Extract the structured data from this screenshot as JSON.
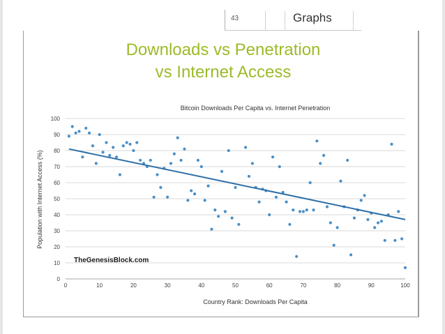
{
  "header": {
    "slide_number": "43",
    "section_title": "Graphs"
  },
  "slide": {
    "title_line1": "Downloads vs Penetration",
    "title_line2": "vs Internet Access"
  },
  "colors": {
    "title_green": "#9cbb29",
    "point_blue": "#4a8fc6",
    "trend_blue": "#2e6fa8"
  },
  "chart_data": {
    "type": "scatter",
    "title": "Bitcoin Downloads Per Capita vs. Internet Penetration",
    "xlabel": "Country Rank: Downloads Per Capita",
    "ylabel": "Population with Internet Access (%)",
    "xlim": [
      0,
      100
    ],
    "ylim": [
      0,
      100
    ],
    "xticks": [
      0,
      10,
      20,
      30,
      40,
      50,
      60,
      70,
      80,
      90,
      100
    ],
    "yticks": [
      0,
      10,
      20,
      30,
      40,
      50,
      60,
      70,
      80,
      90,
      100
    ],
    "grid": "horizontal",
    "annotation": "TheGenesisBlock.com",
    "trendline": {
      "x": [
        1,
        100
      ],
      "y": [
        81,
        37
      ]
    },
    "points": [
      [
        1,
        89
      ],
      [
        2,
        95
      ],
      [
        3,
        91
      ],
      [
        4,
        92
      ],
      [
        5,
        76
      ],
      [
        6,
        94
      ],
      [
        7,
        91
      ],
      [
        8,
        83
      ],
      [
        9,
        72
      ],
      [
        10,
        90
      ],
      [
        11,
        79
      ],
      [
        12,
        85
      ],
      [
        13,
        77
      ],
      [
        14,
        82
      ],
      [
        15,
        76
      ],
      [
        16,
        65
      ],
      [
        17,
        83
      ],
      [
        18,
        85
      ],
      [
        19,
        84
      ],
      [
        20,
        80
      ],
      [
        21,
        85
      ],
      [
        22,
        74
      ],
      [
        23,
        72
      ],
      [
        24,
        70
      ],
      [
        25,
        74
      ],
      [
        26,
        51
      ],
      [
        27,
        65
      ],
      [
        28,
        57
      ],
      [
        29,
        69
      ],
      [
        30,
        51
      ],
      [
        31,
        72
      ],
      [
        32,
        78
      ],
      [
        33,
        88
      ],
      [
        34,
        74
      ],
      [
        35,
        81
      ],
      [
        36,
        49
      ],
      [
        37,
        55
      ],
      [
        38,
        53
      ],
      [
        39,
        74
      ],
      [
        40,
        70
      ],
      [
        41,
        49
      ],
      [
        42,
        58
      ],
      [
        43,
        31
      ],
      [
        44,
        43
      ],
      [
        45,
        39
      ],
      [
        46,
        67
      ],
      [
        47,
        42
      ],
      [
        48,
        80
      ],
      [
        49,
        38
      ],
      [
        50,
        57
      ],
      [
        51,
        34
      ],
      [
        53,
        82
      ],
      [
        54,
        64
      ],
      [
        55,
        72
      ],
      [
        56,
        57
      ],
      [
        57,
        48
      ],
      [
        58,
        56
      ],
      [
        59,
        55
      ],
      [
        60,
        40
      ],
      [
        61,
        76
      ],
      [
        62,
        51
      ],
      [
        63,
        70
      ],
      [
        64,
        54
      ],
      [
        65,
        48
      ],
      [
        66,
        34
      ],
      [
        67,
        43
      ],
      [
        68,
        14
      ],
      [
        69,
        42
      ],
      [
        70,
        42
      ],
      [
        71,
        43
      ],
      [
        72,
        60
      ],
      [
        73,
        43
      ],
      [
        74,
        86
      ],
      [
        75,
        72
      ],
      [
        76,
        77
      ],
      [
        77,
        45
      ],
      [
        78,
        35
      ],
      [
        79,
        21
      ],
      [
        80,
        32
      ],
      [
        81,
        61
      ],
      [
        82,
        45
      ],
      [
        83,
        74
      ],
      [
        84,
        15
      ],
      [
        85,
        38
      ],
      [
        86,
        43
      ],
      [
        87,
        49
      ],
      [
        88,
        52
      ],
      [
        89,
        37
      ],
      [
        90,
        41
      ],
      [
        91,
        32
      ],
      [
        92,
        35
      ],
      [
        93,
        36
      ],
      [
        94,
        24
      ],
      [
        95,
        40
      ],
      [
        96,
        84
      ],
      [
        97,
        24
      ],
      [
        98,
        42
      ],
      [
        99,
        25
      ],
      [
        100,
        7
      ]
    ]
  }
}
